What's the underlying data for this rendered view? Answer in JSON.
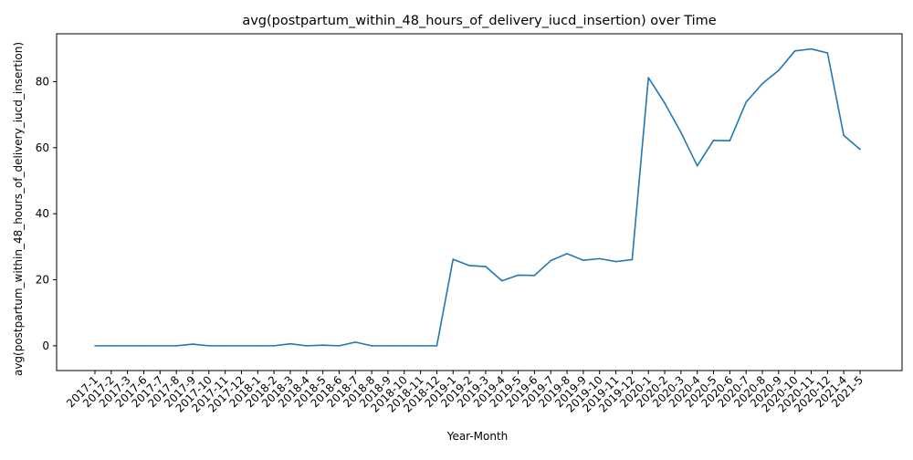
{
  "chart_data": {
    "type": "line",
    "title": "avg(postpartum_within_48_hours_of_delivery_iucd_insertion) over Time",
    "xlabel": "Year-Month",
    "ylabel": "avg(postpartum_within_48_hours_of_delivery_iucd_insertion)",
    "ylim": [
      -7.5,
      94.5
    ],
    "yticks": [
      0,
      20,
      40,
      60,
      80
    ],
    "grid": false,
    "legend": "none",
    "line_color": "#1f77b4",
    "categories": [
      "2017-1",
      "2017-2",
      "2017-3",
      "2017-6",
      "2017-7",
      "2017-8",
      "2017-9",
      "2017-10",
      "2017-11",
      "2017-12",
      "2018-1",
      "2018-2",
      "2018-3",
      "2018-4",
      "2018-5",
      "2018-6",
      "2018-7",
      "2018-8",
      "2018-9",
      "2018-10",
      "2018-11",
      "2018-12",
      "2019-1",
      "2019-2",
      "2019-3",
      "2019-4",
      "2019-5",
      "2019-6",
      "2019-7",
      "2019-8",
      "2019-9",
      "2019-10",
      "2019-11",
      "2019-12",
      "2020-1",
      "2020-2",
      "2020-3",
      "2020-4",
      "2020-5",
      "2020-6",
      "2020-7",
      "2020-8",
      "2020-9",
      "2020-10",
      "2020-11",
      "2020-12",
      "2021-4",
      "2021-5"
    ],
    "values": [
      0.0,
      0.0,
      0.0,
      0.0,
      0.0,
      0.0,
      0.5,
      0.0,
      0.0,
      0.0,
      0.0,
      0.0,
      0.6,
      0.0,
      0.2,
      0.0,
      1.1,
      0.0,
      0.0,
      0.0,
      0.0,
      0.0,
      26.2,
      24.3,
      24.0,
      19.7,
      21.4,
      21.3,
      25.8,
      27.9,
      25.9,
      26.4,
      25.5,
      26.1,
      81.2,
      73.5,
      64.6,
      54.5,
      62.2,
      62.1,
      73.8,
      79.4,
      83.4,
      89.3,
      89.9,
      88.7,
      63.7,
      59.5
    ]
  }
}
